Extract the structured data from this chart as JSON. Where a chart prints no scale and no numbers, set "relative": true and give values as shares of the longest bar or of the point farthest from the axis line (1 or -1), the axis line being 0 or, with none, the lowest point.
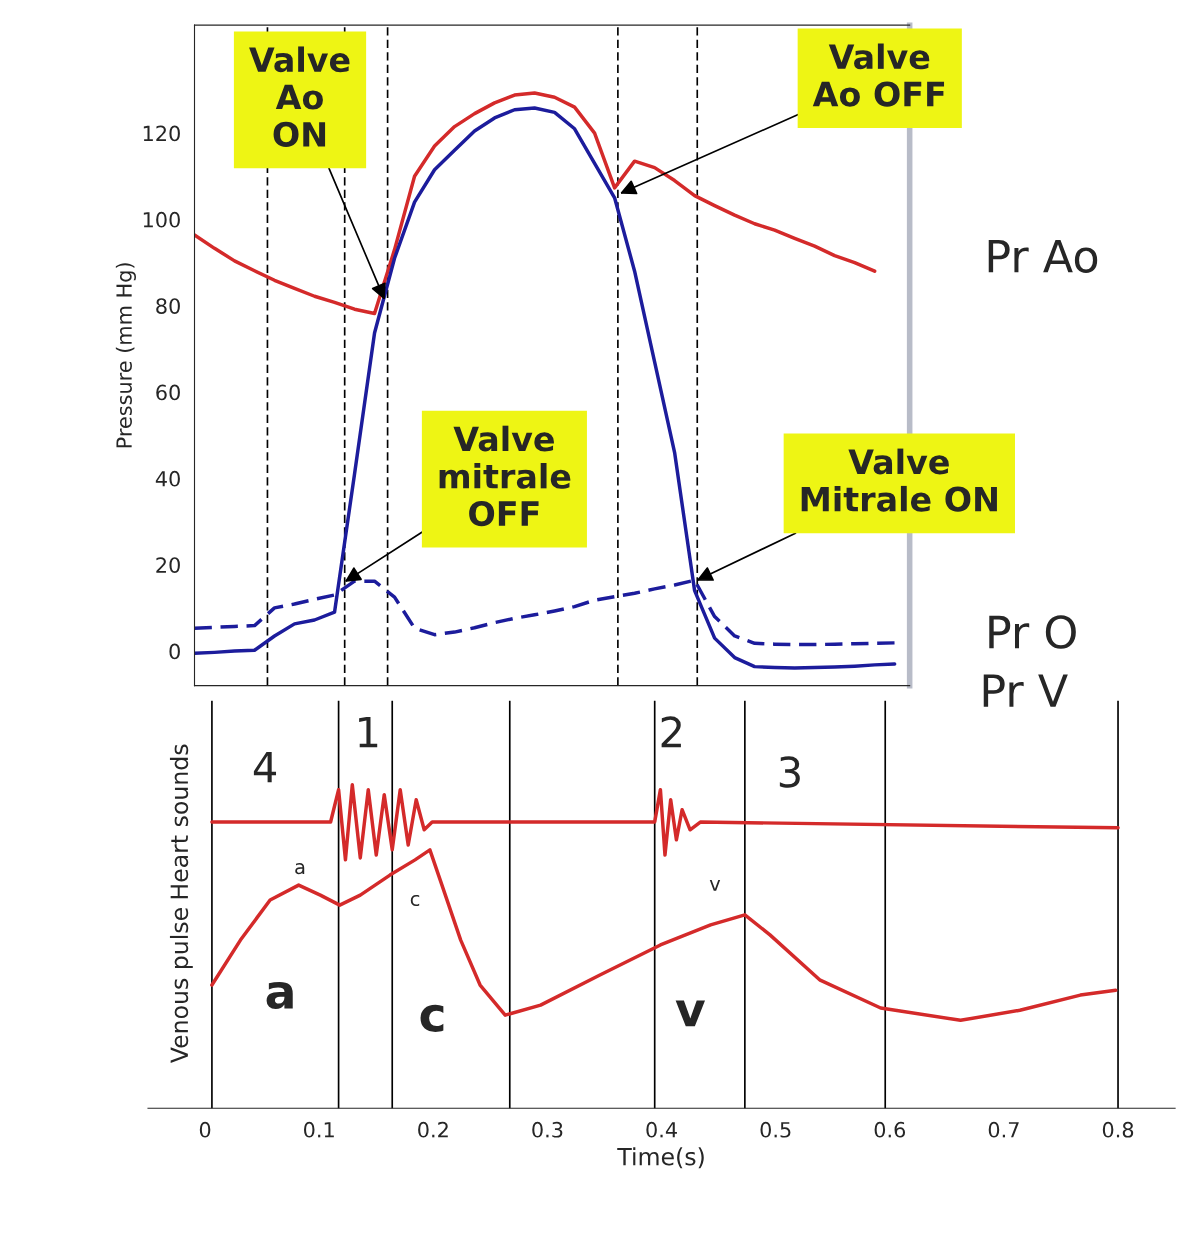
{
  "chart_data": [
    {
      "type": "line",
      "ylabel": "Pressure (mm Hg)",
      "ylim": [
        -8,
        145
      ],
      "yticks": [
        0,
        20,
        40,
        60,
        80,
        100,
        120
      ],
      "tick_labels": "y",
      "categories": [
        null,
        null,
        null,
        null,
        null,
        null,
        null,
        null,
        null,
        null,
        null,
        null,
        null,
        null,
        null,
        null,
        null,
        null,
        null,
        null,
        null,
        null,
        null,
        null,
        null,
        null,
        null,
        null,
        null,
        null,
        null,
        null,
        null,
        null,
        null,
        null
      ],
      "series": [
        {
          "name": "Pr Ao",
          "color": "#d42a2a",
          "values": [
            96.4,
            93.3,
            90.4,
            88.1,
            85.9,
            84,
            82.2,
            80.8,
            79.2,
            78.2,
            93,
            110,
            117,
            121.5,
            124.5,
            127,
            128.8,
            129.3,
            128.3,
            126,
            120,
            107.3,
            113.5,
            112,
            109,
            105.5,
            103.2,
            101,
            99,
            97.5,
            95.6,
            93.8,
            91.6,
            90,
            88,
            null
          ]
        },
        {
          "name": "Pr O",
          "color": "#1c1c9c",
          "line_style": "dashed",
          "values": [
            5.3,
            5.5,
            5.7,
            5.9,
            10,
            10.9,
            12,
            13,
            16.2,
            16.2,
            12.5,
            5.3,
            3.8,
            4.4,
            5.4,
            6.6,
            7.6,
            8.4,
            9.3,
            10.3,
            11.8,
            12.6,
            13.4,
            14.4,
            15.3,
            16.4,
            8,
            3.5,
            1.8,
            1.6,
            1.5,
            1.5,
            1.6,
            1.7,
            1.8,
            1.9
          ]
        },
        {
          "name": "Pr V",
          "color": "#1c1c9c",
          "line_style": "solid",
          "values": [
            -0.5,
            -0.3,
            0,
            0.2,
            3.5,
            6.3,
            7.2,
            9,
            41,
            73.7,
            91,
            104,
            111.5,
            116,
            120.5,
            123.5,
            125.4,
            125.8,
            124.8,
            121,
            113,
            105,
            88,
            67,
            46,
            14,
            3,
            -1.5,
            -3.6,
            -3.8,
            -3.9,
            -3.8,
            -3.7,
            -3.5,
            -3.2,
            -3
          ]
        }
      ],
      "annotations": [
        "Valve\nAo\nON",
        "Valve\nAo OFF",
        "Valve\nmitrale\nOFF",
        "Valve\nMitrale ON"
      ]
    },
    {
      "type": "line",
      "relative": true,
      "xlabel": "Time(s)",
      "xlim": [
        -0.05,
        0.85
      ],
      "xticks": [
        0,
        0.1,
        0.2,
        0.3,
        0.4,
        0.5,
        0.6,
        0.7,
        0.8
      ],
      "series": [
        {
          "name": "Heart sounds",
          "color": "#d42a2a",
          "x": [
            0.006,
            0.11,
            0.117,
            0.123,
            0.129,
            0.136,
            0.143,
            0.15,
            0.157,
            0.164,
            0.171,
            0.178,
            0.185,
            0.192,
            0.199,
            0.39,
            0.394,
            0.399,
            0.403,
            0.408,
            0.413,
            0.418,
            0.425,
            0.434,
            0.8
          ],
          "values": [
            0.885,
            0.885,
            0.985,
            0.768,
            1.0,
            0.774,
            0.985,
            0.783,
            0.969,
            0.799,
            0.985,
            0.814,
            0.954,
            0.861,
            0.885,
            0.885,
            0.885,
            0.985,
            0.783,
            0.954,
            0.83,
            0.923,
            0.861,
            0.885,
            0.867
          ]
        },
        {
          "name": "Venous pulse",
          "color": "#d42a2a",
          "x": [
            0.006,
            0.031,
            0.057,
            0.082,
            0.101,
            0.118,
            0.136,
            0.162,
            0.184,
            0.197,
            0.206,
            0.224,
            0.241,
            0.263,
            0.294,
            0.346,
            0.399,
            0.443,
            0.473,
            0.495,
            0.539,
            0.592,
            0.662,
            0.714,
            0.767,
            0.798
          ],
          "values": [
            0.381,
            0.52,
            0.644,
            0.69,
            0.659,
            0.628,
            0.659,
            0.721,
            0.768,
            0.799,
            0.706,
            0.52,
            0.381,
            0.288,
            0.319,
            0.412,
            0.505,
            0.567,
            0.598,
            0.536,
            0.396,
            0.31,
            0.272,
            0.303,
            0.35,
            0.365
          ]
        }
      ],
      "ref_lines": [
        {
          "axis": "x",
          "value": 0.006,
          "color": "#000000"
        },
        {
          "axis": "x",
          "value": 0.117,
          "color": "#000000"
        },
        {
          "axis": "x",
          "value": 0.164,
          "color": "#000000"
        },
        {
          "axis": "x",
          "value": 0.267,
          "color": "#000000"
        },
        {
          "axis": "x",
          "value": 0.394,
          "color": "#000000"
        },
        {
          "axis": "x",
          "value": 0.473,
          "color": "#000000"
        },
        {
          "axis": "x",
          "value": 0.596,
          "color": "#000000"
        },
        {
          "axis": "x",
          "value": 0.8,
          "color": "#000000"
        }
      ],
      "annotations": [
        "4",
        "1",
        "2",
        "3",
        "a",
        "c",
        "v",
        "a",
        "c",
        "v"
      ]
    }
  ]
}
